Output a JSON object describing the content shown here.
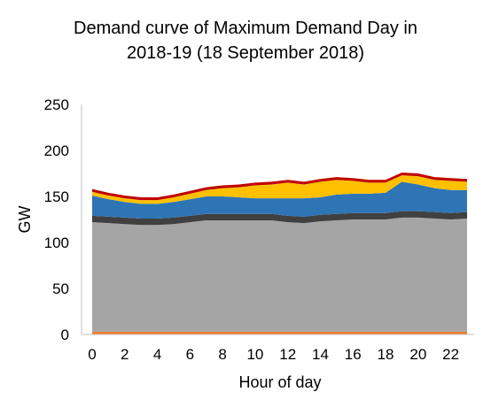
{
  "chart_data": {
    "type": "area",
    "title_lines": [
      "Demand curve of Maximum Demand Day in",
      "2018-19 (18 September 2018)"
    ],
    "xlabel": "Hour of day",
    "ylabel": "GW",
    "xlim": [
      0,
      23
    ],
    "ylim": [
      0,
      250
    ],
    "x_ticks": [
      0,
      2,
      4,
      6,
      8,
      10,
      12,
      14,
      16,
      18,
      20,
      22
    ],
    "y_ticks": [
      0,
      50,
      100,
      150,
      200,
      250
    ],
    "grid": false,
    "legend": "none",
    "x": [
      0,
      1,
      2,
      3,
      4,
      5,
      6,
      7,
      8,
      9,
      10,
      11,
      12,
      13,
      14,
      15,
      16,
      17,
      18,
      19,
      20,
      21,
      22,
      23
    ],
    "series": [
      {
        "color": "#ed7d31",
        "values": [
          3,
          3,
          3,
          3,
          3,
          3,
          3,
          3,
          3,
          3,
          3,
          3,
          3,
          3,
          3,
          3,
          3,
          3,
          3,
          3,
          3,
          3,
          3,
          3
        ]
      },
      {
        "color": "#a5a5a5",
        "values": [
          119,
          118,
          117,
          116,
          116,
          117,
          119,
          121,
          121,
          121,
          121,
          121,
          119,
          118,
          120,
          121,
          122,
          122,
          122,
          124,
          124,
          123,
          122,
          123
        ]
      },
      {
        "color": "#404040",
        "values": [
          7,
          7,
          7,
          7,
          7,
          7,
          7,
          7,
          7,
          7,
          7,
          7,
          7,
          7,
          7,
          7,
          7,
          7,
          7,
          7,
          7,
          7,
          7,
          7
        ]
      },
      {
        "color": "#2e75b6",
        "values": [
          22,
          19,
          17,
          16,
          16,
          17,
          18,
          19,
          19,
          18,
          17,
          17,
          19,
          20,
          19,
          21,
          21,
          21,
          22,
          32,
          29,
          26,
          25,
          24
        ]
      },
      {
        "color": "#ffc000",
        "values": [
          4,
          4,
          4,
          4,
          4,
          5,
          6,
          7,
          9,
          11,
          14,
          15,
          17,
          15,
          17,
          16,
          14,
          12,
          11,
          7,
          9,
          9,
          10,
          9
        ]
      },
      {
        "color": "#c00000",
        "values": [
          3,
          3,
          3,
          3,
          3,
          3,
          3,
          3,
          3,
          3,
          3,
          3,
          3,
          3,
          3,
          3,
          3,
          3,
          3,
          3,
          3,
          3,
          3,
          3
        ]
      }
    ]
  }
}
